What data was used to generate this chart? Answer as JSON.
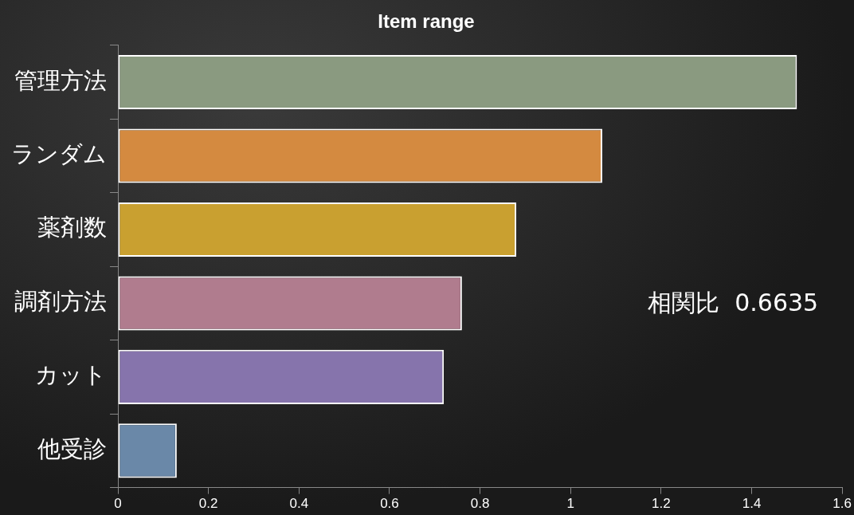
{
  "chart_data": {
    "type": "bar",
    "orientation": "horizontal",
    "title": "Item range",
    "categories": [
      "管理方法",
      "ランダム",
      "薬剤数",
      "調剤方法",
      "カット",
      "他受診"
    ],
    "values": [
      1.5,
      1.07,
      0.88,
      0.76,
      0.72,
      0.13
    ],
    "colors": [
      "#8a9a80",
      "#d48a40",
      "#c9a030",
      "#b07c8e",
      "#8674ac",
      "#6a88a8"
    ],
    "xlim": [
      0,
      1.6
    ],
    "xticks": [
      0,
      0.2,
      0.4,
      0.6,
      0.8,
      1,
      1.2,
      1.4,
      1.6
    ],
    "grid": false,
    "legend": false,
    "annotations": [
      "相関比  0.6635"
    ]
  }
}
